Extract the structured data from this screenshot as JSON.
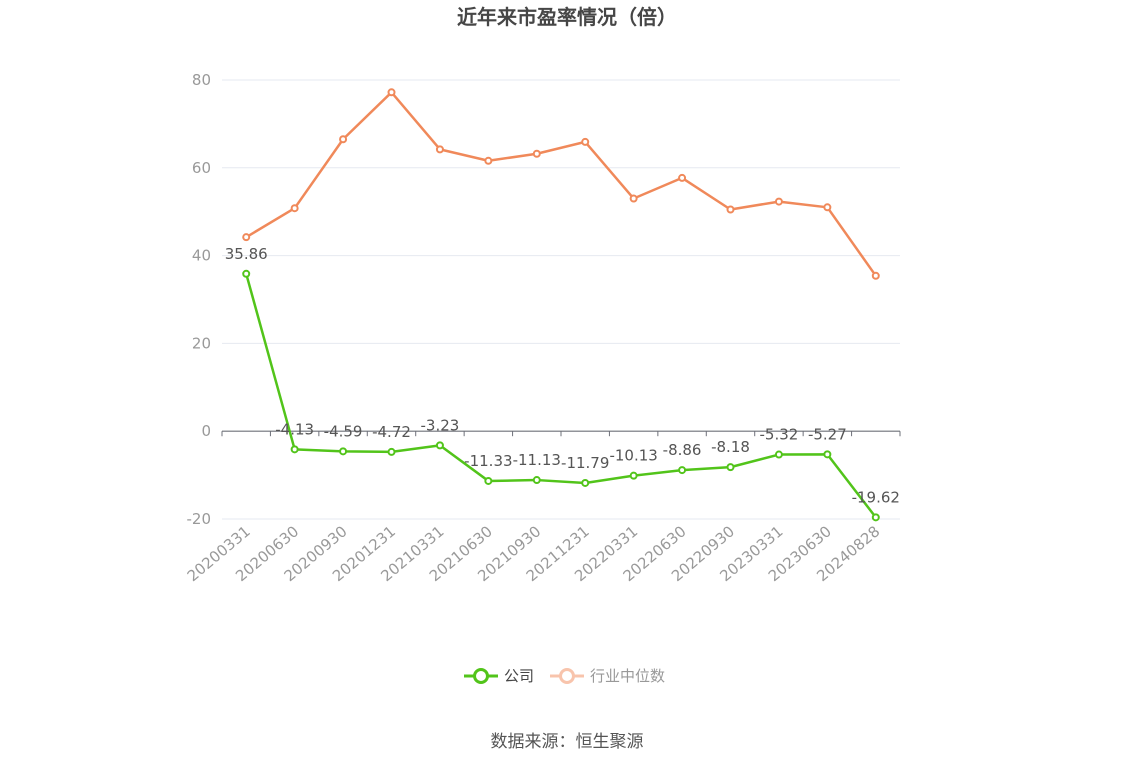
{
  "chart_data": {
    "type": "line",
    "title": "近年来市盈率情况（倍）",
    "categories": [
      "20200331",
      "20200630",
      "20200930",
      "20201231",
      "20210331",
      "20210630",
      "20210930",
      "20211231",
      "20220331",
      "20220630",
      "20220930",
      "20230331",
      "20230630",
      "20240828"
    ],
    "series": [
      {
        "name": "公司",
        "color": "#52c41a",
        "values": [
          35.86,
          -4.13,
          -4.59,
          -4.72,
          -3.23,
          -11.33,
          -11.13,
          -11.79,
          -10.13,
          -8.86,
          -8.18,
          -5.32,
          -5.27,
          -19.62
        ],
        "labels": [
          "35.86",
          "-4.13",
          "-4.59",
          "-4.72",
          "-3.23",
          "-11.33",
          "-11.13",
          "-11.79",
          "-10.13",
          "-8.86",
          "-8.18",
          "-5.32",
          "-5.27",
          "-19.62"
        ]
      },
      {
        "name": "行业中位数",
        "color": "#f0895a",
        "values": [
          44.2,
          50.8,
          66.5,
          77.2,
          64.2,
          61.6,
          63.2,
          65.9,
          53.0,
          57.7,
          50.5,
          52.3,
          51.0,
          35.4
        ]
      }
    ],
    "yticks": [
      80,
      60,
      40,
      20,
      0,
      -20
    ],
    "ylim": [
      -20,
      80
    ],
    "grid": true,
    "legend_position": "bottom-center"
  },
  "source_label": "数据来源：恒生聚源"
}
